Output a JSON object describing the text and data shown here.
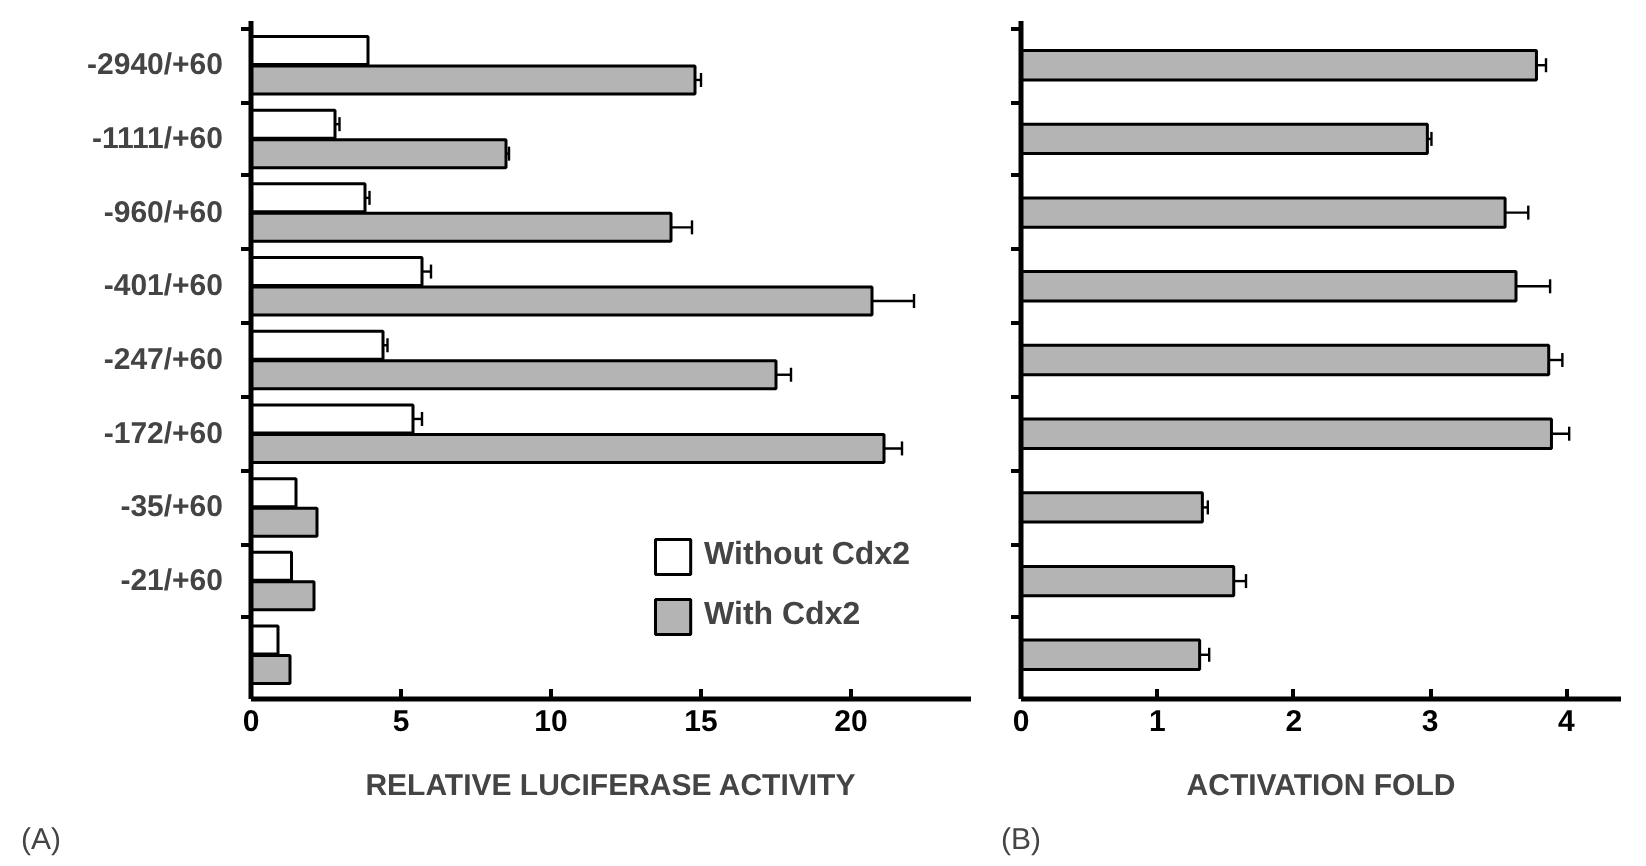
{
  "chart_data": [
    {
      "type": "bar",
      "orientation": "horizontal",
      "xlabel": "RELATIVE LUCIFERASE ACTIVITY",
      "categories": [
        "-2940/+60",
        "-1111/+60",
        "-960/+60",
        "-401/+60",
        "-247/+60",
        "-172/+60",
        "-35/+60",
        "-21/+60",
        null
      ],
      "series": [
        {
          "name": "Without Cdx2",
          "color": "#ffffff",
          "values": [
            3.9,
            2.8,
            3.8,
            5.7,
            4.4,
            5.4,
            1.5,
            1.35,
            0.9
          ],
          "errors": [
            null,
            0.15,
            0.15,
            0.3,
            0.15,
            0.3,
            null,
            null,
            null
          ]
        },
        {
          "name": "With Cdx2",
          "color": "#b4b4b4",
          "values": [
            14.8,
            8.5,
            14.0,
            20.7,
            17.5,
            21.1,
            2.2,
            2.1,
            1.3
          ],
          "errors": [
            0.2,
            0.1,
            0.7,
            1.4,
            0.5,
            0.6,
            null,
            null,
            null
          ]
        }
      ],
      "xlim": [
        0,
        24
      ],
      "xticks": [
        0,
        5,
        10,
        15,
        20
      ],
      "legend": "bottom right",
      "grid": false,
      "annotations": [
        "(A)"
      ]
    },
    {
      "type": "bar",
      "orientation": "horizontal",
      "xlabel": "ACTIVATION FOLD",
      "categories": [
        null,
        null,
        null,
        null,
        null,
        null,
        null,
        null,
        null
      ],
      "series": [
        {
          "color": "#b4b4b4",
          "values": [
            3.78,
            2.98,
            3.55,
            3.63,
            3.87,
            3.89,
            1.33,
            1.56,
            1.31
          ],
          "errors": [
            0.07,
            0.03,
            0.17,
            0.25,
            0.1,
            0.13,
            0.04,
            0.09,
            0.07
          ]
        }
      ],
      "xlim": [
        0,
        4.4
      ],
      "xticks": [
        0,
        1,
        2,
        3,
        4
      ],
      "tick_labels": "x",
      "grid": false,
      "annotations": [
        "(B)"
      ]
    }
  ]
}
